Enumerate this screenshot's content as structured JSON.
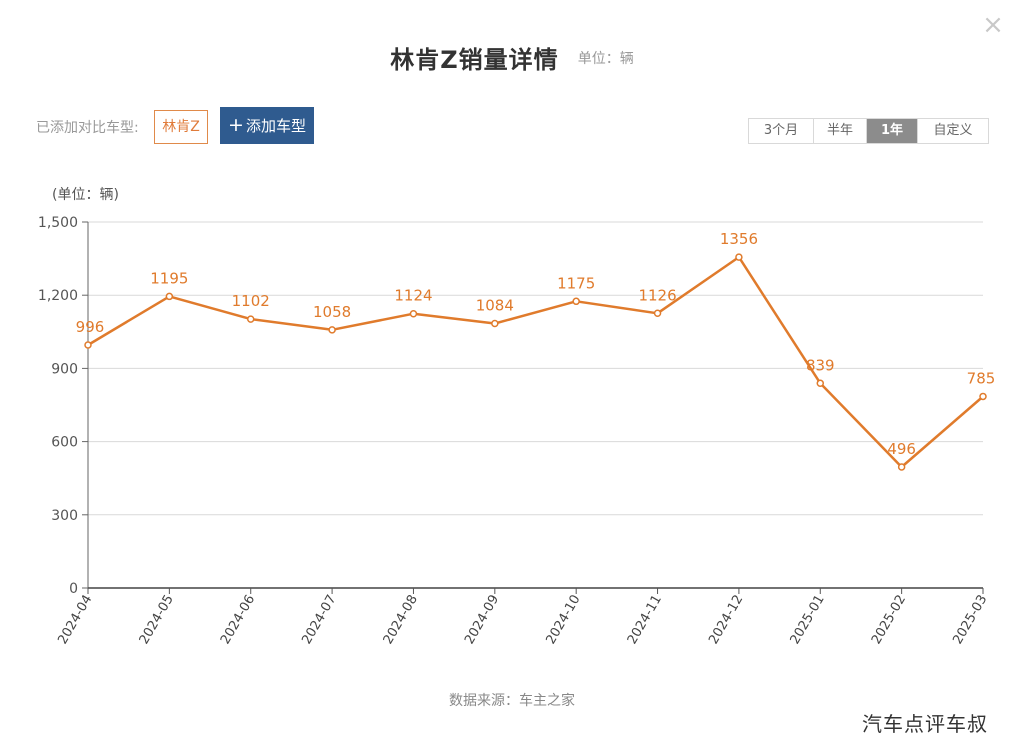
{
  "dialog": {
    "close_glyph": "×"
  },
  "header": {
    "title": "林肯Z销量详情",
    "unit": "单位：辆"
  },
  "compare": {
    "label": "已添加对比车型:",
    "tag": "林肯Z",
    "add_button": "添加车型",
    "add_icon": "plus-icon"
  },
  "range": {
    "options": [
      "3个月",
      "半年",
      "1年",
      "自定义"
    ],
    "selected": "1年"
  },
  "footer": {
    "source": "数据来源：车主之家"
  },
  "watermark": {
    "text": "汽车点评车叔"
  },
  "colors": {
    "line": "#e07b2c",
    "label": "#e07b2c",
    "accent_button": "#2f5b8f",
    "grid": "#d9d9d9"
  },
  "chart_data": {
    "type": "line",
    "unit_label": "(单位：辆)",
    "categories": [
      "2024-04",
      "2024-05",
      "2024-06",
      "2024-07",
      "2024-08",
      "2024-09",
      "2024-10",
      "2024-11",
      "2024-12",
      "2025-01",
      "2025-02",
      "2025-03"
    ],
    "values": [
      996,
      1195,
      1102,
      1058,
      1124,
      1084,
      1175,
      1126,
      1356,
      839,
      496,
      785
    ],
    "y_ticks": [
      "0",
      "300",
      "600",
      "900",
      "1,200",
      "1,500"
    ],
    "ylim": [
      0,
      1500
    ],
    "grid": true
  }
}
